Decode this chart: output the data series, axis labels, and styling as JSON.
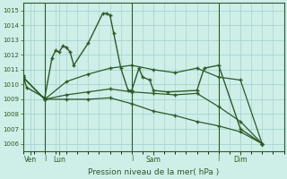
{
  "background_color": "#ceeee8",
  "line_color": "#2d5a27",
  "grid_color": "#9ecfca",
  "xlabel": "Pression niveau de la mer( hPa )",
  "ylim": [
    1005.5,
    1015.5
  ],
  "yticks": [
    1006,
    1007,
    1008,
    1009,
    1010,
    1011,
    1012,
    1013,
    1014,
    1015
  ],
  "xlim": [
    0,
    72
  ],
  "xtick_positions": [
    2,
    10,
    36,
    60
  ],
  "xtick_labels": [
    "Ven",
    "Lun",
    "Sam",
    "Dim"
  ],
  "vlines": [
    6,
    30,
    54
  ],
  "line1_x": [
    0,
    1,
    6,
    8,
    9,
    10,
    11,
    12,
    13,
    14,
    18,
    22,
    23,
    24,
    25,
    27,
    29,
    30,
    32,
    33,
    35,
    36,
    40,
    48,
    50,
    54,
    60,
    66
  ],
  "line1_y": [
    1010.6,
    1009.8,
    1009.1,
    1011.8,
    1012.3,
    1012.2,
    1012.6,
    1012.5,
    1012.2,
    1011.3,
    1012.8,
    1014.8,
    1014.8,
    1014.7,
    1013.5,
    1011.1,
    1009.6,
    1009.6,
    1011.1,
    1010.5,
    1010.3,
    1009.6,
    1009.5,
    1009.6,
    1011.1,
    1011.3,
    1007.0,
    1006.0
  ],
  "line2_x": [
    0,
    6,
    12,
    18,
    24,
    30,
    36,
    42,
    48,
    54,
    60,
    66
  ],
  "line2_y": [
    1010.5,
    1009.0,
    1010.2,
    1010.7,
    1011.1,
    1011.3,
    1011.0,
    1010.8,
    1011.1,
    1010.5,
    1010.3,
    1006.0
  ],
  "line3_x": [
    0,
    6,
    12,
    18,
    24,
    30,
    36,
    42,
    48,
    54,
    60,
    66
  ],
  "line3_y": [
    1010.5,
    1009.0,
    1009.3,
    1009.5,
    1009.7,
    1009.5,
    1009.4,
    1009.3,
    1009.4,
    1008.5,
    1007.5,
    1006.0
  ],
  "line4_x": [
    0,
    6,
    12,
    18,
    24,
    30,
    36,
    42,
    48,
    54,
    60,
    66
  ],
  "line4_y": [
    1010.5,
    1009.0,
    1009.0,
    1009.0,
    1009.1,
    1008.7,
    1008.2,
    1007.9,
    1007.5,
    1007.2,
    1006.8,
    1006.0
  ]
}
